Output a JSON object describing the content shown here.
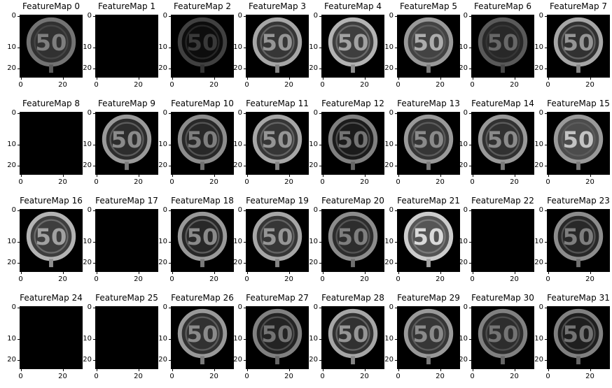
{
  "figure": {
    "panels": [
      {
        "title": "FeatureMap 0",
        "intensity": 0.55,
        "ring": 0.45,
        "blank": false
      },
      {
        "title": "FeatureMap 1",
        "intensity": 0,
        "ring": 0,
        "blank": true
      },
      {
        "title": "FeatureMap 2",
        "intensity": 0.15,
        "ring": 0.25,
        "blank": false
      },
      {
        "title": "FeatureMap 3",
        "intensity": 0.6,
        "ring": 0.65,
        "blank": false
      },
      {
        "title": "FeatureMap 4",
        "intensity": 0.7,
        "ring": 0.7,
        "blank": false
      },
      {
        "title": "FeatureMap 5",
        "intensity": 0.75,
        "ring": 0.6,
        "blank": false
      },
      {
        "title": "FeatureMap 6",
        "intensity": 0.45,
        "ring": 0.35,
        "blank": false
      },
      {
        "title": "FeatureMap 7",
        "intensity": 0.55,
        "ring": 0.65,
        "blank": false
      },
      {
        "title": "FeatureMap 8",
        "intensity": 0,
        "ring": 0,
        "blank": true
      },
      {
        "title": "FeatureMap 9",
        "intensity": 0.5,
        "ring": 0.6,
        "blank": false
      },
      {
        "title": "FeatureMap 10",
        "intensity": 0.45,
        "ring": 0.55,
        "blank": false
      },
      {
        "title": "FeatureMap 11",
        "intensity": 0.6,
        "ring": 0.65,
        "blank": false
      },
      {
        "title": "FeatureMap 12",
        "intensity": 0.3,
        "ring": 0.5,
        "blank": false
      },
      {
        "title": "FeatureMap 13",
        "intensity": 0.6,
        "ring": 0.6,
        "blank": false
      },
      {
        "title": "FeatureMap 14",
        "intensity": 0.55,
        "ring": 0.6,
        "blank": false
      },
      {
        "title": "FeatureMap 15",
        "intensity": 0.85,
        "ring": 0.6,
        "blank": false
      },
      {
        "title": "FeatureMap 16",
        "intensity": 0.7,
        "ring": 0.7,
        "blank": false
      },
      {
        "title": "FeatureMap 17",
        "intensity": 0,
        "ring": 0,
        "blank": true
      },
      {
        "title": "FeatureMap 18",
        "intensity": 0.45,
        "ring": 0.6,
        "blank": false
      },
      {
        "title": "FeatureMap 19",
        "intensity": 0.6,
        "ring": 0.65,
        "blank": false
      },
      {
        "title": "FeatureMap 20",
        "intensity": 0.5,
        "ring": 0.55,
        "blank": false
      },
      {
        "title": "FeatureMap 21",
        "intensity": 0.95,
        "ring": 0.8,
        "blank": false
      },
      {
        "title": "FeatureMap 22",
        "intensity": 0,
        "ring": 0,
        "blank": true
      },
      {
        "title": "FeatureMap 23",
        "intensity": 0.45,
        "ring": 0.55,
        "blank": false
      },
      {
        "title": "FeatureMap 24",
        "intensity": 0,
        "ring": 0,
        "blank": true
      },
      {
        "title": "FeatureMap 25",
        "intensity": 0,
        "ring": 0,
        "blank": true
      },
      {
        "title": "FeatureMap 26",
        "intensity": 0.55,
        "ring": 0.6,
        "blank": false
      },
      {
        "title": "FeatureMap 27",
        "intensity": 0.4,
        "ring": 0.5,
        "blank": false
      },
      {
        "title": "FeatureMap 28",
        "intensity": 0.55,
        "ring": 0.65,
        "blank": false
      },
      {
        "title": "FeatureMap 29",
        "intensity": 0.6,
        "ring": 0.6,
        "blank": false
      },
      {
        "title": "FeatureMap 30",
        "intensity": 0.5,
        "ring": 0.5,
        "blank": false
      },
      {
        "title": "FeatureMap 31",
        "intensity": 0.35,
        "ring": 0.5,
        "blank": false
      }
    ],
    "sign_text": "50",
    "yticks": [
      "0",
      "10",
      "20"
    ],
    "xticks": [
      "0",
      "20"
    ]
  }
}
